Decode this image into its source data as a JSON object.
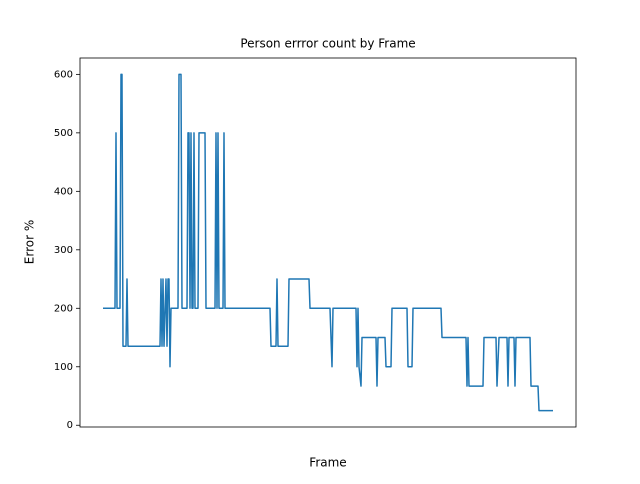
{
  "chart_data": {
    "type": "line",
    "title": "Person errror count by Frame",
    "x_label": "Frame",
    "y_label": "Error %",
    "color": "#1f77b4",
    "x": [
      0,
      12,
      13,
      14,
      17,
      18,
      19,
      20,
      23,
      24,
      25,
      57,
      58,
      59,
      60,
      61,
      63,
      64,
      65,
      66,
      67,
      68,
      75,
      76,
      78,
      79,
      84,
      85,
      86,
      87,
      88,
      89,
      90,
      91,
      92,
      95,
      96,
      102,
      103,
      112,
      113,
      114,
      115,
      116,
      120,
      121,
      122,
      167,
      168,
      173,
      174,
      175,
      185,
      186,
      206,
      207,
      227,
      229,
      230,
      253,
      254,
      255,
      256,
      258,
      259,
      273,
      274,
      275,
      282,
      283,
      288,
      289,
      304,
      305,
      309,
      310,
      338,
      339,
      363,
      364,
      365,
      366,
      380,
      381,
      393,
      394,
      396,
      404,
      405,
      406,
      411,
      412,
      413,
      427,
      428,
      435,
      436,
      450
    ],
    "values": [
      200,
      200,
      500,
      200,
      200,
      600,
      600,
      135,
      135,
      250,
      135,
      135,
      250,
      135,
      250,
      135,
      250,
      135,
      250,
      250,
      100,
      200,
      200,
      600,
      600,
      200,
      200,
      500,
      500,
      200,
      500,
      200,
      200,
      500,
      200,
      200,
      500,
      500,
      200,
      200,
      500,
      200,
      500,
      200,
      200,
      500,
      200,
      200,
      135,
      135,
      250,
      135,
      135,
      250,
      250,
      200,
      200,
      100,
      200,
      200,
      100,
      200,
      100,
      67,
      150,
      150,
      67,
      150,
      150,
      100,
      100,
      200,
      200,
      100,
      100,
      200,
      200,
      150,
      150,
      67,
      150,
      67,
      67,
      150,
      150,
      67,
      150,
      150,
      67,
      150,
      150,
      67,
      150,
      150,
      67,
      67,
      25,
      25
    ],
    "xlim": [
      -23,
      473
    ],
    "ylim": [
      -3,
      628
    ],
    "yticks": [
      0,
      100,
      200,
      300,
      400,
      500,
      600
    ]
  }
}
